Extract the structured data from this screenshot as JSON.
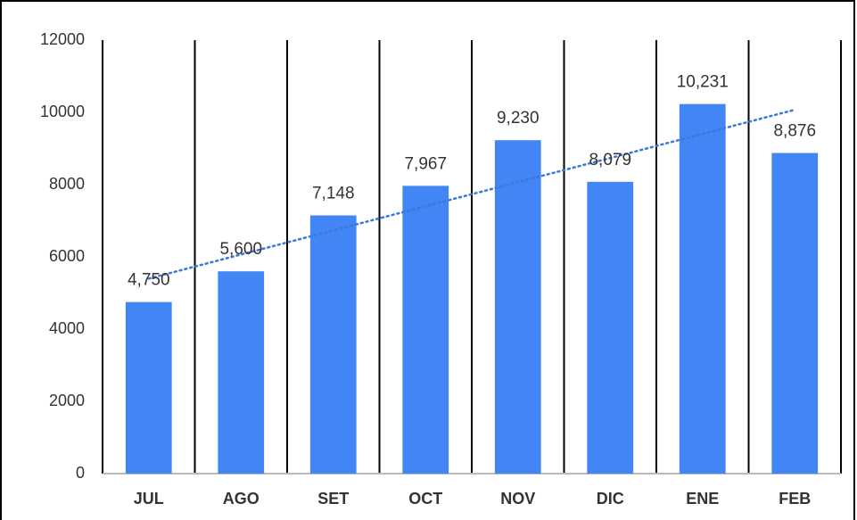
{
  "chart_data": {
    "type": "bar",
    "categories": [
      "JUL",
      "AGO",
      "SET",
      "OCT",
      "NOV",
      "DIC",
      "ENE",
      "FEB"
    ],
    "values": [
      4750,
      5600,
      7148,
      7967,
      9230,
      8079,
      10231,
      8876
    ],
    "value_labels": [
      "4,750",
      "5,600",
      "7,148",
      "7,967",
      "9,230",
      "8,079",
      "10,231",
      "8,876"
    ],
    "color": "#4285f4",
    "ylim": [
      0,
      12000
    ],
    "yticks": [
      0,
      2000,
      4000,
      6000,
      8000,
      10000,
      12000
    ],
    "xgrid": true,
    "trendline": "linear",
    "trendline_color": "#3c78d8"
  }
}
